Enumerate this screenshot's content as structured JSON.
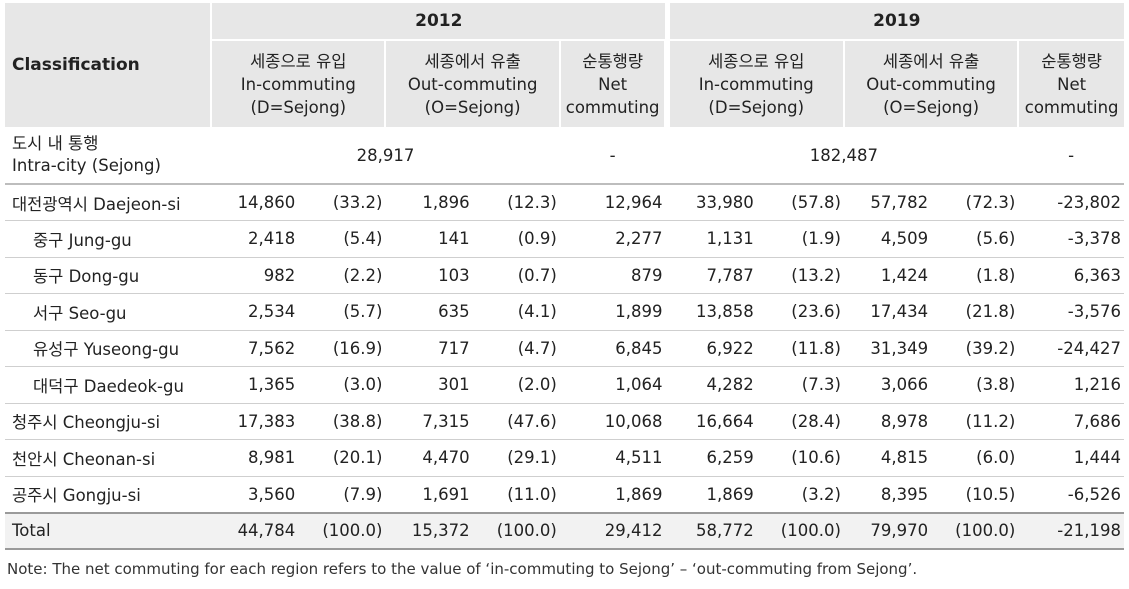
{
  "header": {
    "classification": "Classification",
    "year_2012": "2012",
    "year_2019": "2019",
    "in_commuting": [
      "세종으로 유입",
      "In-commuting",
      "(D=Sejong)"
    ],
    "out_commuting": [
      "세종에서 유출",
      "Out-commuting",
      "(O=Sejong)"
    ],
    "net_commuting": [
      "순통행량",
      "Net",
      "commuting"
    ]
  },
  "intra": {
    "label_ko": "도시 내 통행",
    "label_en": "Intra-city (Sejong)",
    "val_2012": "28,917",
    "net_2012": "-",
    "val_2019": "182,487",
    "net_2019": "-"
  },
  "rows": [
    {
      "name": "대전광역시 Daejeon-si",
      "in12": "14,860",
      "in12p": "(33.2)",
      "out12": "1,896",
      "out12p": "(12.3)",
      "net12": "12,964",
      "in19": "33,980",
      "in19p": "(57.8)",
      "out19": "57,782",
      "out19p": "(72.3)",
      "net19": "-23,802"
    },
    {
      "name": "중구 Jung-gu",
      "in12": "2,418",
      "in12p": "(5.4)",
      "out12": "141",
      "out12p": "(0.9)",
      "net12": "2,277",
      "in19": "1,131",
      "in19p": "(1.9)",
      "out19": "4,509",
      "out19p": "(5.6)",
      "net19": "-3,378"
    },
    {
      "name": "동구 Dong-gu",
      "in12": "982",
      "in12p": "(2.2)",
      "out12": "103",
      "out12p": "(0.7)",
      "net12": "879",
      "in19": "7,787",
      "in19p": "(13.2)",
      "out19": "1,424",
      "out19p": "(1.8)",
      "net19": "6,363"
    },
    {
      "name": "서구 Seo-gu",
      "in12": "2,534",
      "in12p": "(5.7)",
      "out12": "635",
      "out12p": "(4.1)",
      "net12": "1,899",
      "in19": "13,858",
      "in19p": "(23.6)",
      "out19": "17,434",
      "out19p": "(21.8)",
      "net19": "-3,576"
    },
    {
      "name": "유성구 Yuseong-gu",
      "in12": "7,562",
      "in12p": "(16.9)",
      "out12": "717",
      "out12p": "(4.7)",
      "net12": "6,845",
      "in19": "6,922",
      "in19p": "(11.8)",
      "out19": "31,349",
      "out19p": "(39.2)",
      "net19": "-24,427"
    },
    {
      "name": "대덕구 Daedeok-gu",
      "in12": "1,365",
      "in12p": "(3.0)",
      "out12": "301",
      "out12p": "(2.0)",
      "net12": "1,064",
      "in19": "4,282",
      "in19p": "(7.3)",
      "out19": "3,066",
      "out19p": "(3.8)",
      "net19": "1,216"
    },
    {
      "name": "청주시 Cheongju-si",
      "in12": "17,383",
      "in12p": "(38.8)",
      "out12": "7,315",
      "out12p": "(47.6)",
      "net12": "10,068",
      "in19": "16,664",
      "in19p": "(28.4)",
      "out19": "8,978",
      "out19p": "(11.2)",
      "net19": "7,686"
    },
    {
      "name": "천안시 Cheonan-si",
      "in12": "8,981",
      "in12p": "(20.1)",
      "out12": "4,470",
      "out12p": "(29.1)",
      "net12": "4,511",
      "in19": "6,259",
      "in19p": "(10.6)",
      "out19": "4,815",
      "out19p": "(6.0)",
      "net19": "1,444"
    },
    {
      "name": "공주시 Gongju-si",
      "in12": "3,560",
      "in12p": "(7.9)",
      "out12": "1,691",
      "out12p": "(11.0)",
      "net12": "1,869",
      "in19": "1,869",
      "in19p": "(3.2)",
      "out19": "8,395",
      "out19p": "(10.5)",
      "net19": "-6,526"
    },
    {
      "name": "Total",
      "in12": "44,784",
      "in12p": "(100.0)",
      "out12": "15,372",
      "out12p": "(100.0)",
      "net12": "29,412",
      "in19": "58,772",
      "in19p": "(100.0)",
      "out19": "79,970",
      "out19p": "(100.0)",
      "net19": "-21,198"
    }
  ],
  "note": "Note: The net commuting for each region refers to the value of ‘in-commuting to Sejong’ – ‘out-commuting from Sejong’."
}
